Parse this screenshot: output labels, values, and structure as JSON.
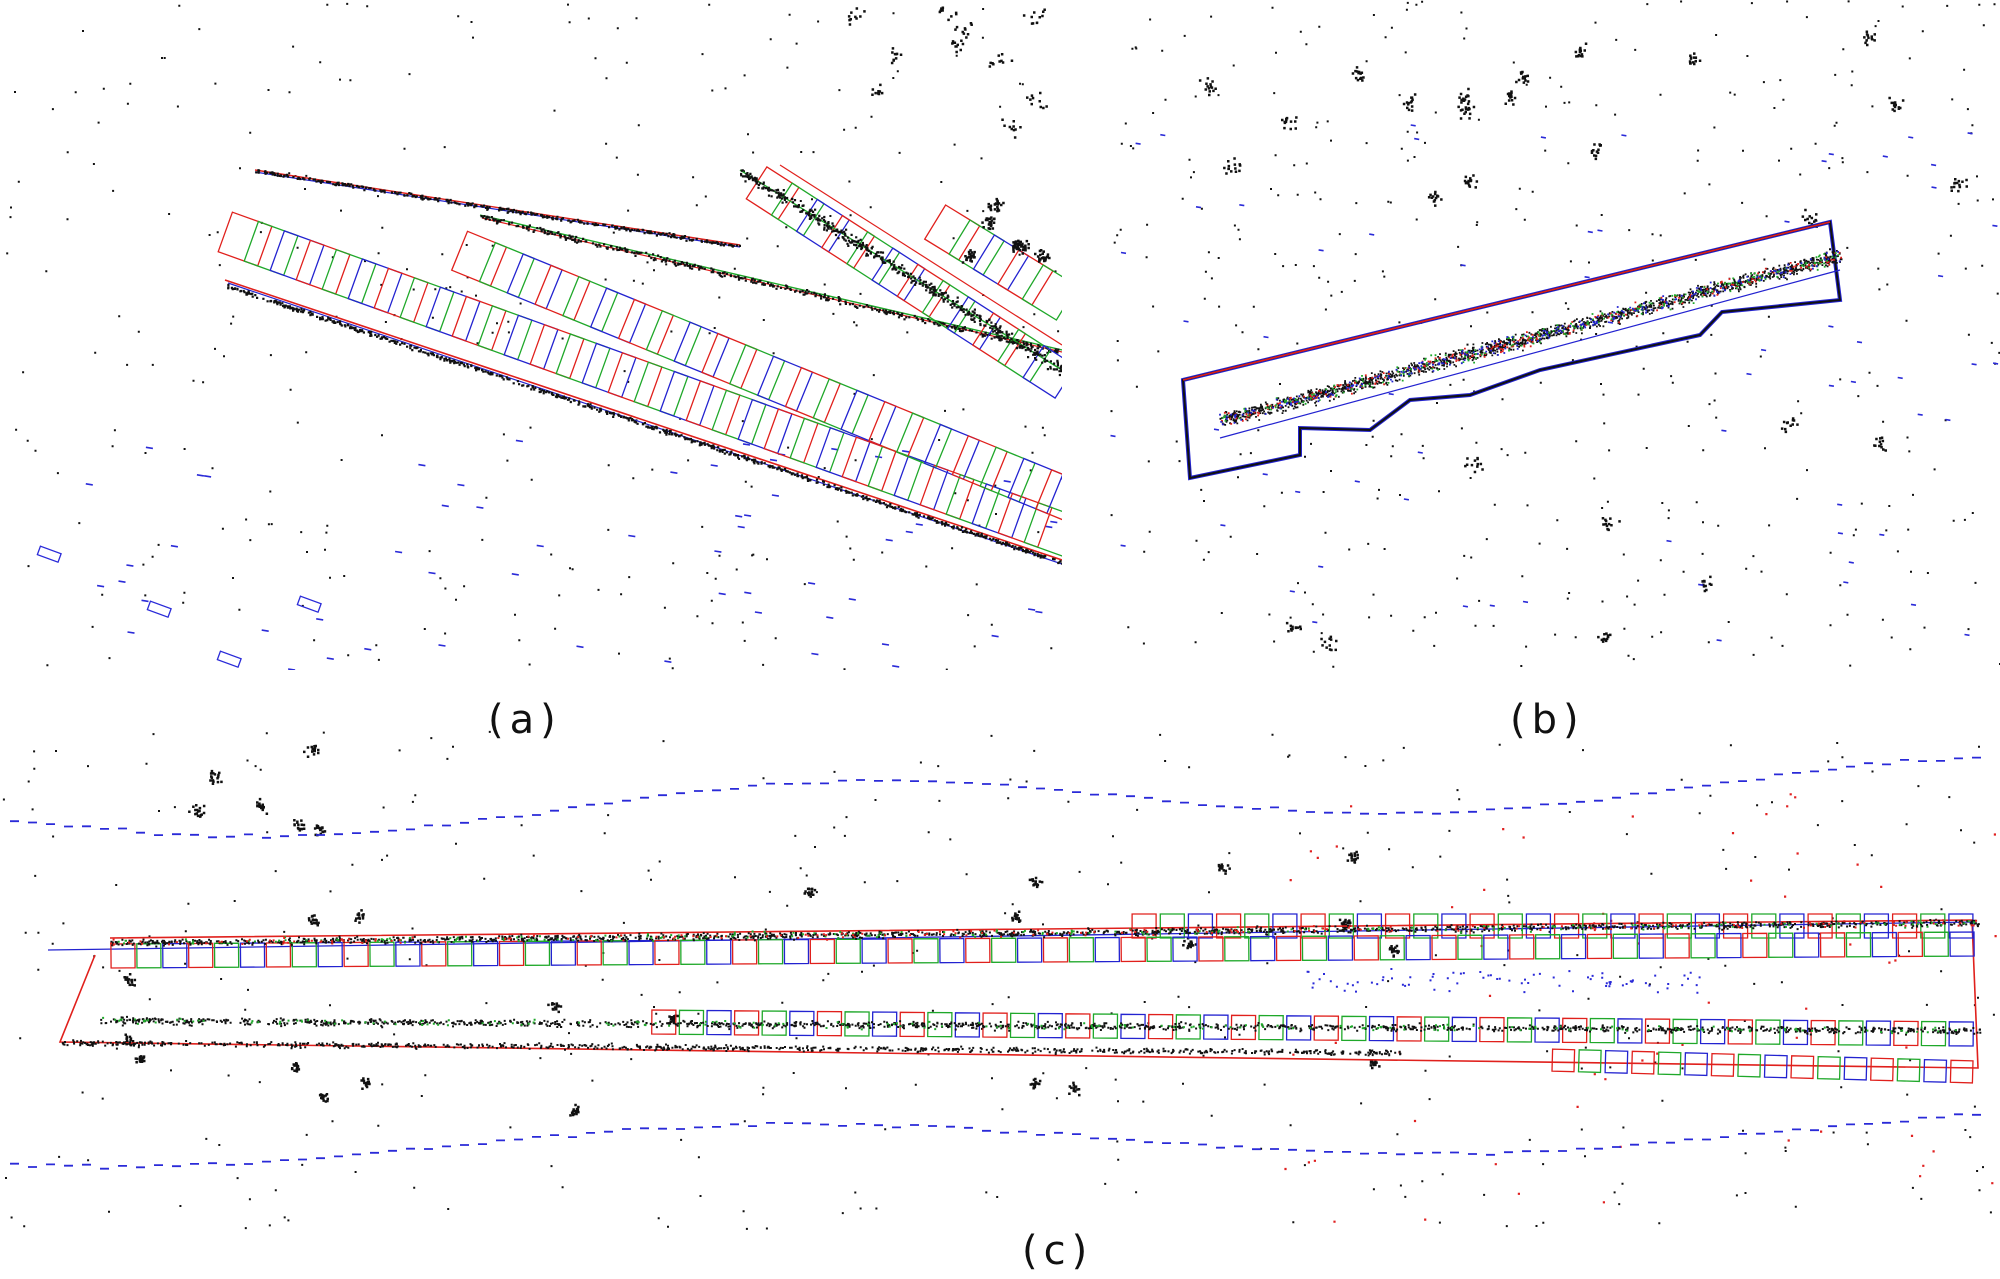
{
  "figure": {
    "panels": [
      {
        "id": "a",
        "caption": "(a)"
      },
      {
        "id": "b",
        "caption": "(b)"
      },
      {
        "id": "c",
        "caption": "(c)"
      }
    ]
  },
  "colors": {
    "background": "#ffffff",
    "map_points": "#111111",
    "keyframe_red": "#e0201c",
    "keyframe_green": "#1fa82a",
    "keyframe_blue": "#2323d0",
    "sparse_blue": "#2a2ad8",
    "sparse_red": "#e02020"
  }
}
